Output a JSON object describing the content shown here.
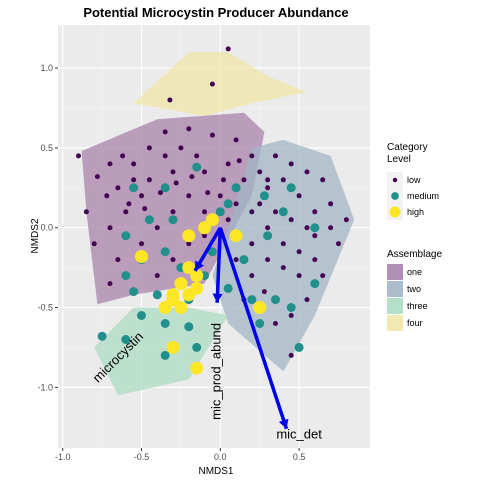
{
  "chart_data": {
    "type": "scatter",
    "title": "Potential Microcystin Producer Abundance",
    "xlabel": "NMDS1",
    "ylabel": "NMDS2",
    "xlim": [
      -1.03,
      0.95
    ],
    "ylim": [
      -1.38,
      1.27
    ],
    "x_ticks": [
      -1.0,
      -0.5,
      0.0,
      0.5
    ],
    "x_tick_labels": [
      "-1.0",
      "-0.5",
      "0.0",
      "0.5"
    ],
    "y_ticks": [
      -1.0,
      -0.5,
      0.0,
      0.5,
      1.0
    ],
    "y_tick_labels": [
      "-1.0",
      "-0.5",
      "0.0",
      "0.5",
      "1.0"
    ],
    "grid": true,
    "legend_placement": "right",
    "category_legend": {
      "title_line1": "Category",
      "title_line2": "Level",
      "levels": [
        {
          "label": "low",
          "color": "#440154",
          "size": 2.6
        },
        {
          "label": "medium",
          "color": "#21908C",
          "size": 4.5
        },
        {
          "label": "high",
          "color": "#FDE725",
          "size": 6.5
        }
      ]
    },
    "assemblage_legend": {
      "title": "Assemblage",
      "groups": [
        {
          "label": "one",
          "color": "#A982AB"
        },
        {
          "label": "two",
          "color": "#A2B6C4"
        },
        {
          "label": "three",
          "color": "#ACDCC3"
        },
        {
          "label": "four",
          "color": "#F1E6A8"
        }
      ]
    },
    "hulls": [
      {
        "name": "one",
        "color": "#A982AB",
        "points": [
          [
            -0.88,
            0.48
          ],
          [
            -0.4,
            0.68
          ],
          [
            0.15,
            0.72
          ],
          [
            0.28,
            0.6
          ],
          [
            0.2,
            0.2
          ],
          [
            -0.1,
            -0.35
          ],
          [
            -0.55,
            -0.42
          ],
          [
            -0.78,
            -0.48
          ],
          [
            -0.85,
            0.1
          ]
        ]
      },
      {
        "name": "two",
        "color": "#A2B6C4",
        "points": [
          [
            0.2,
            0.5
          ],
          [
            0.4,
            0.55
          ],
          [
            0.7,
            0.45
          ],
          [
            0.85,
            0.05
          ],
          [
            0.6,
            -0.55
          ],
          [
            0.4,
            -0.9
          ],
          [
            0.05,
            -0.6
          ],
          [
            -0.05,
            -0.3
          ],
          [
            0.05,
            0.0
          ]
        ]
      },
      {
        "name": "three",
        "color": "#ACDCC3",
        "points": [
          [
            -0.8,
            -0.75
          ],
          [
            -0.55,
            -0.5
          ],
          [
            -0.2,
            -0.5
          ],
          [
            0.05,
            -0.55
          ],
          [
            -0.2,
            -0.95
          ],
          [
            -0.65,
            -1.05
          ]
        ]
      },
      {
        "name": "four",
        "color": "#F1E6A8",
        "points": [
          [
            -0.55,
            0.78
          ],
          [
            -0.2,
            1.1
          ],
          [
            0.05,
            1.1
          ],
          [
            0.3,
            0.95
          ],
          [
            0.55,
            0.85
          ],
          [
            0.2,
            0.78
          ],
          [
            -0.1,
            0.7
          ]
        ]
      }
    ],
    "series": [
      {
        "name": "low",
        "color": "#440154",
        "size": 2.5,
        "points": [
          [
            -0.9,
            0.45
          ],
          [
            -0.78,
            0.32
          ],
          [
            -0.85,
            0.1
          ],
          [
            -0.7,
            0.4
          ],
          [
            -0.65,
            0.25
          ],
          [
            -0.55,
            0.4
          ],
          [
            -0.45,
            0.5
          ],
          [
            -0.35,
            0.6
          ],
          [
            -0.2,
            0.62
          ],
          [
            -0.05,
            0.58
          ],
          [
            0.1,
            0.55
          ],
          [
            0.2,
            0.45
          ],
          [
            0.05,
            0.4
          ],
          [
            -0.1,
            0.35
          ],
          [
            -0.3,
            0.35
          ],
          [
            -0.5,
            0.2
          ],
          [
            -0.6,
            0.1
          ],
          [
            -0.7,
            0.0
          ],
          [
            -0.8,
            -0.1
          ],
          [
            -0.65,
            -0.2
          ],
          [
            -0.5,
            -0.1
          ],
          [
            -0.4,
            0.0
          ],
          [
            -0.3,
            0.1
          ],
          [
            -0.2,
            0.2
          ],
          [
            -0.1,
            0.1
          ],
          [
            0.0,
            0.2
          ],
          [
            0.1,
            0.15
          ],
          [
            0.2,
            0.1
          ],
          [
            0.3,
            0.25
          ],
          [
            0.4,
            0.3
          ],
          [
            0.5,
            0.2
          ],
          [
            0.6,
            0.1
          ],
          [
            0.7,
            0.0
          ],
          [
            0.75,
            -0.1
          ],
          [
            0.6,
            -0.2
          ],
          [
            0.5,
            -0.3
          ],
          [
            0.4,
            -0.1
          ],
          [
            0.3,
            0.0
          ],
          [
            0.2,
            -0.1
          ],
          [
            0.1,
            -0.2
          ],
          [
            0.35,
            0.45
          ],
          [
            0.45,
            0.4
          ],
          [
            0.55,
            0.35
          ],
          [
            0.65,
            0.3
          ],
          [
            0.25,
            0.35
          ],
          [
            -0.15,
            0.45
          ],
          [
            -0.25,
            0.5
          ],
          [
            -0.35,
            0.45
          ],
          [
            -0.45,
            0.3
          ],
          [
            -0.55,
            0.3
          ],
          [
            -0.4,
            -0.3
          ],
          [
            -0.3,
            -0.2
          ],
          [
            -0.2,
            -0.1
          ],
          [
            -0.1,
            -0.05
          ],
          [
            0.05,
            0.05
          ],
          [
            0.15,
            0.3
          ],
          [
            0.25,
            0.15
          ],
          [
            0.35,
            0.1
          ],
          [
            0.45,
            0.05
          ],
          [
            0.55,
            0.0
          ],
          [
            -0.62,
            0.45
          ],
          [
            -0.72,
            0.2
          ],
          [
            -0.58,
            0.15
          ],
          [
            -0.48,
            0.12
          ],
          [
            -0.38,
            0.22
          ],
          [
            -0.28,
            0.28
          ],
          [
            -0.18,
            0.32
          ],
          [
            -0.08,
            0.22
          ],
          [
            0.02,
            0.3
          ],
          [
            0.12,
            0.42
          ],
          [
            0.3,
            -0.2
          ],
          [
            0.4,
            -0.25
          ],
          [
            0.5,
            -0.15
          ],
          [
            0.6,
            -0.05
          ],
          [
            0.7,
            0.15
          ],
          [
            0.8,
            0.05
          ],
          [
            0.65,
            -0.3
          ],
          [
            0.55,
            -0.45
          ],
          [
            0.45,
            -0.55
          ],
          [
            0.35,
            -0.6
          ],
          [
            -0.05,
            0.9
          ],
          [
            0.05,
            1.12
          ],
          [
            -0.32,
            0.8
          ],
          [
            0.3,
            0.3
          ],
          [
            0.28,
            -0.4
          ],
          [
            0.2,
            -0.3
          ],
          [
            0.45,
            -0.8
          ],
          [
            0.15,
            -0.45
          ],
          [
            -0.7,
            -0.35
          ],
          [
            -0.6,
            -0.05
          ]
        ]
      },
      {
        "name": "medium",
        "color": "#21908C",
        "size": 4.5,
        "points": [
          [
            -0.55,
            0.25
          ],
          [
            -0.35,
            0.25
          ],
          [
            -0.15,
            0.38
          ],
          [
            0.1,
            0.25
          ],
          [
            0.28,
            0.2
          ],
          [
            0.45,
            0.25
          ],
          [
            0.6,
            0.0
          ],
          [
            -0.6,
            -0.05
          ],
          [
            -0.5,
            -0.2
          ],
          [
            -0.35,
            -0.15
          ],
          [
            -0.25,
            -0.25
          ],
          [
            -0.1,
            -0.3
          ],
          [
            0.05,
            -0.38
          ],
          [
            0.2,
            -0.45
          ],
          [
            0.35,
            -0.45
          ],
          [
            0.45,
            -0.5
          ],
          [
            0.6,
            -0.35
          ],
          [
            -0.6,
            -0.3
          ],
          [
            -0.5,
            -0.55
          ],
          [
            -0.35,
            -0.6
          ],
          [
            -0.2,
            -0.62
          ],
          [
            -0.15,
            -0.75
          ],
          [
            -0.35,
            -0.8
          ],
          [
            -0.6,
            -0.7
          ],
          [
            -0.75,
            -0.68
          ],
          [
            -0.4,
            -0.42
          ],
          [
            0.15,
            -0.2
          ],
          [
            0.3,
            -0.05
          ],
          [
            0.4,
            0.1
          ],
          [
            -0.45,
            0.05
          ],
          [
            -0.3,
            0.05
          ],
          [
            0.05,
            0.15
          ],
          [
            -0.2,
            -0.45
          ],
          [
            0.25,
            -0.6
          ],
          [
            0.5,
            -0.75
          ],
          [
            -0.05,
            -0.15
          ],
          [
            -0.55,
            -0.4
          ],
          [
            0.0,
            0.1
          ]
        ]
      },
      {
        "name": "high",
        "color": "#FDE725",
        "size": 6.5,
        "points": [
          [
            -0.05,
            0.05
          ],
          [
            -0.1,
            0.0
          ],
          [
            0.1,
            -0.05
          ],
          [
            -0.5,
            -0.18
          ],
          [
            -0.2,
            -0.25
          ],
          [
            -0.15,
            -0.3
          ],
          [
            -0.25,
            -0.35
          ],
          [
            -0.3,
            -0.45
          ],
          [
            -0.25,
            -0.5
          ],
          [
            -0.35,
            -0.5
          ],
          [
            -0.3,
            -0.42
          ],
          [
            -0.2,
            -0.42
          ],
          [
            0.25,
            -0.5
          ],
          [
            -0.3,
            -0.75
          ],
          [
            -0.15,
            -0.88
          ],
          [
            -0.2,
            -0.05
          ],
          [
            -0.15,
            -0.38
          ]
        ]
      }
    ],
    "vectors": [
      {
        "label": "microcystin",
        "x": -0.16,
        "y": -0.27,
        "label_x": -0.63,
        "label_y": -0.83,
        "label_rotate": -45
      },
      {
        "label": "mic_prod_abund",
        "x": -0.02,
        "y": -0.47,
        "label_x": 0.0,
        "label_y": -0.9,
        "label_rotate": -90
      },
      {
        "label": "mic_det",
        "x": 0.42,
        "y": -1.26,
        "label_x": 0.5,
        "label_y": -1.32,
        "label_rotate": 0
      }
    ],
    "vector_color": "#0000EE"
  }
}
